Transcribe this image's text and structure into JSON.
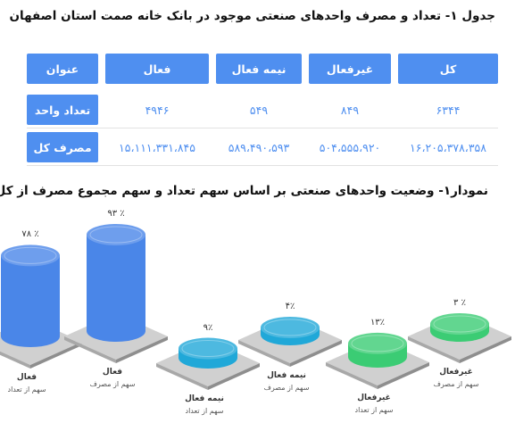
{
  "table": {
    "title": "جدول ۱- تعداد و مصرف واحدهای صنعتی موجود در بانک خانه صمت استان اصفهان",
    "columns": [
      "عنوان",
      "فعال",
      "نیمه فعال",
      "غیرفعال",
      "کل"
    ],
    "rows": [
      {
        "label": "تعداد واحد",
        "values": [
          "۴۹۴۶",
          "۵۴۹",
          "۸۴۹",
          "۶۳۴۴"
        ]
      },
      {
        "label": "مصرف کل",
        "values": [
          "۱۵،۱۱۱،۳۳۱،۸۴۵",
          "۵۸۹،۴۹۰،۵۹۳",
          "۵۰۴،۵۵۵،۹۲۰",
          "۱۶،۲۰۵،۳۷۸،۳۵۸"
        ]
      }
    ]
  },
  "chart_data": {
    "type": "bar",
    "title": "نمودار۱- وضعیت واحدهای صنعتی بر اساس سهم تعداد و سهم مجموع مصرف از کل",
    "bars": [
      {
        "status": "فعال",
        "metric": "سهم از تعداد",
        "value": 78,
        "label": "۷۸ ٪",
        "color": "#4a86e8"
      },
      {
        "status": "فعال",
        "metric": "سهم از مصرف",
        "value": 93,
        "label": "۹۳ ٪",
        "color": "#4a86e8"
      },
      {
        "status": "نیمه فعال",
        "metric": "سهم از تعداد",
        "value": 9,
        "label": "۹٪",
        "color": "#20a8d8"
      },
      {
        "status": "نیمه فعال",
        "metric": "سهم از مصرف",
        "value": 4,
        "label": "۴٪",
        "color": "#20a8d8"
      },
      {
        "status": "غیرفعال",
        "metric": "سهم از تعداد",
        "value": 13,
        "label": "۱۳٪",
        "color": "#3bcc74"
      },
      {
        "status": "غیرفعال",
        "metric": "سهم از مصرف",
        "value": 3,
        "label": "۳ ٪",
        "color": "#3bcc74"
      }
    ]
  }
}
